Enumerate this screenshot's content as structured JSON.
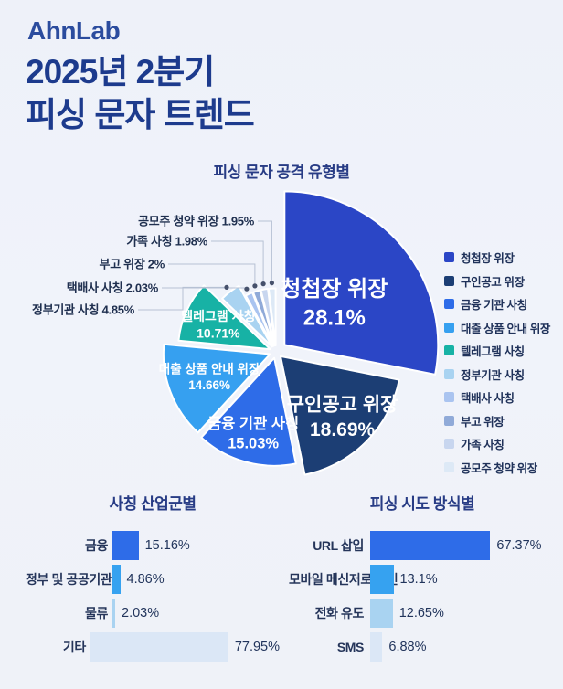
{
  "header": {
    "logo": "AhnLab",
    "title_line1": "2025년 2분기",
    "title_line2": "피싱 문자 트렌드"
  },
  "colors": {
    "background": "#eff2f9",
    "logo_blue": "#2b4c9e",
    "title_navy": "#1d3b8d",
    "section_title_navy": "#283c85",
    "text_dark": "#20325a",
    "callout_line": "#b7c1d4",
    "callout_dot": "#46516b"
  },
  "chart_data": [
    {
      "type": "pie",
      "title": "피싱 문자 공격 유형별",
      "unit": "%",
      "legend_position": "right",
      "slices": [
        {
          "label": "청첩장 위장",
          "value": 28.1,
          "display": "28.1%",
          "color": "#2b46c6"
        },
        {
          "label": "구인공고 위장",
          "value": 18.69,
          "display": "18.69%",
          "color": "#1c3e74"
        },
        {
          "label": "금융 기관 사칭",
          "value": 15.03,
          "display": "15.03%",
          "color": "#2e6ce8"
        },
        {
          "label": "대출 상품 안내 위장",
          "value": 14.66,
          "display": "14.66%",
          "color": "#36a0f0"
        },
        {
          "label": "텔레그램 사칭",
          "value": 10.71,
          "display": "10.71%",
          "color": "#17b2a5"
        },
        {
          "label": "정부기관 사칭",
          "value": 4.85,
          "display": "4.85%",
          "color": "#a9d3f1"
        },
        {
          "label": "택배사 사칭",
          "value": 2.03,
          "display": "2.03%",
          "color": "#aac4f0"
        },
        {
          "label": "부고 위장",
          "value": 2,
          "display": "2%",
          "color": "#90aad8"
        },
        {
          "label": "가족 사칭",
          "value": 1.98,
          "display": "1.98%",
          "color": "#c8d6ef"
        },
        {
          "label": "공모주 청약 위장",
          "value": 1.95,
          "display": "1.95%",
          "color": "#dde9f6"
        }
      ]
    },
    {
      "type": "bar",
      "title": "사칭 산업군별",
      "orientation": "horizontal",
      "unit": "%",
      "categories": [
        "금융",
        "정부 및 공공기관",
        "물류",
        "기타"
      ],
      "values": [
        15.16,
        4.86,
        2.03,
        77.95
      ],
      "display": [
        "15.16%",
        "4.86%",
        "2.03%",
        "77.95%"
      ],
      "bar_colors": [
        "#2e6ce8",
        "#36a2f0",
        "#a9d3f1",
        "#dbe7f6"
      ],
      "xlim": [
        0,
        100
      ]
    },
    {
      "type": "bar",
      "title": "피싱 시도 방식별",
      "orientation": "horizontal",
      "unit": "%",
      "categories": [
        "URL 삽입",
        "모바일 메신저로 유인",
        "전화 유도",
        "SMS"
      ],
      "values": [
        67.37,
        13.1,
        12.65,
        6.88
      ],
      "display": [
        "67.37%",
        "13.1%",
        "12.65%",
        "6.88%"
      ],
      "bar_colors": [
        "#2e6ce8",
        "#36a2f0",
        "#a9d3f1",
        "#dbe7f6"
      ],
      "xlim": [
        0,
        100
      ]
    }
  ]
}
